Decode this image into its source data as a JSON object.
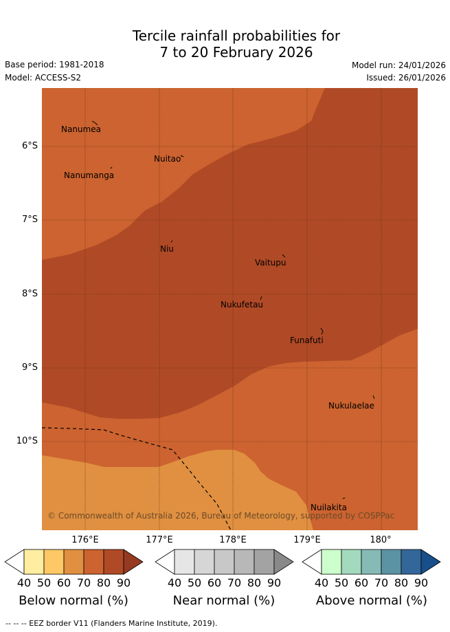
{
  "title": {
    "line1": "Tercile rainfall probabilities for",
    "line2": "7 to 20 February 2026"
  },
  "header": {
    "base_period": "Base period: 1981-2018",
    "model": "Model: ACCESS-S2",
    "model_run": "Model run: 24/01/2026",
    "issued": "Issued: 26/01/2026"
  },
  "map": {
    "lat_labels": [
      "6°S",
      "7°S",
      "8°S",
      "9°S",
      "10°S"
    ],
    "lon_labels": [
      "176°E",
      "177°E",
      "178°E",
      "179°E",
      "180°"
    ],
    "islands": [
      "Nanumea",
      "Nuitao",
      "Nanumanga",
      "Niu",
      "Vaitupu",
      "Nukufetau",
      "Funafuti",
      "Nukulaelae",
      "Nuilakita"
    ],
    "copyright": "© Commonwealth of Australia 2026, Bureau of Meteorology, supported by COSPPac",
    "fill_colors": {
      "below_60_70": "#e09040",
      "below_70_80": "#cc6330",
      "below_80_90": "#b04a26"
    }
  },
  "legend": {
    "below": {
      "label": "Below normal (%)",
      "ticks": [
        "40",
        "50",
        "60",
        "70",
        "80",
        "90"
      ],
      "colors": [
        "#ffffff",
        "#ffeda0",
        "#fdc865",
        "#e09040",
        "#cc6330",
        "#b04a26",
        "#953a20"
      ]
    },
    "near": {
      "label": "Near normal (%)",
      "ticks": [
        "40",
        "50",
        "60",
        "70",
        "80",
        "90"
      ],
      "colors": [
        "#ffffff",
        "#e6e6e6",
        "#d6d6d6",
        "#c8c8c8",
        "#b8b8b8",
        "#a3a3a3",
        "#898989"
      ]
    },
    "above": {
      "label": "Above normal (%)",
      "ticks": [
        "40",
        "50",
        "60",
        "70",
        "80",
        "90"
      ],
      "colors": [
        "#ffffff",
        "#ccffcc",
        "#a3d9bd",
        "#85bab5",
        "#5b93a3",
        "#336699",
        "#164f8a"
      ]
    }
  },
  "footer": "--  --  -- EEZ border V11 (Flanders Marine Institute, 2019)."
}
